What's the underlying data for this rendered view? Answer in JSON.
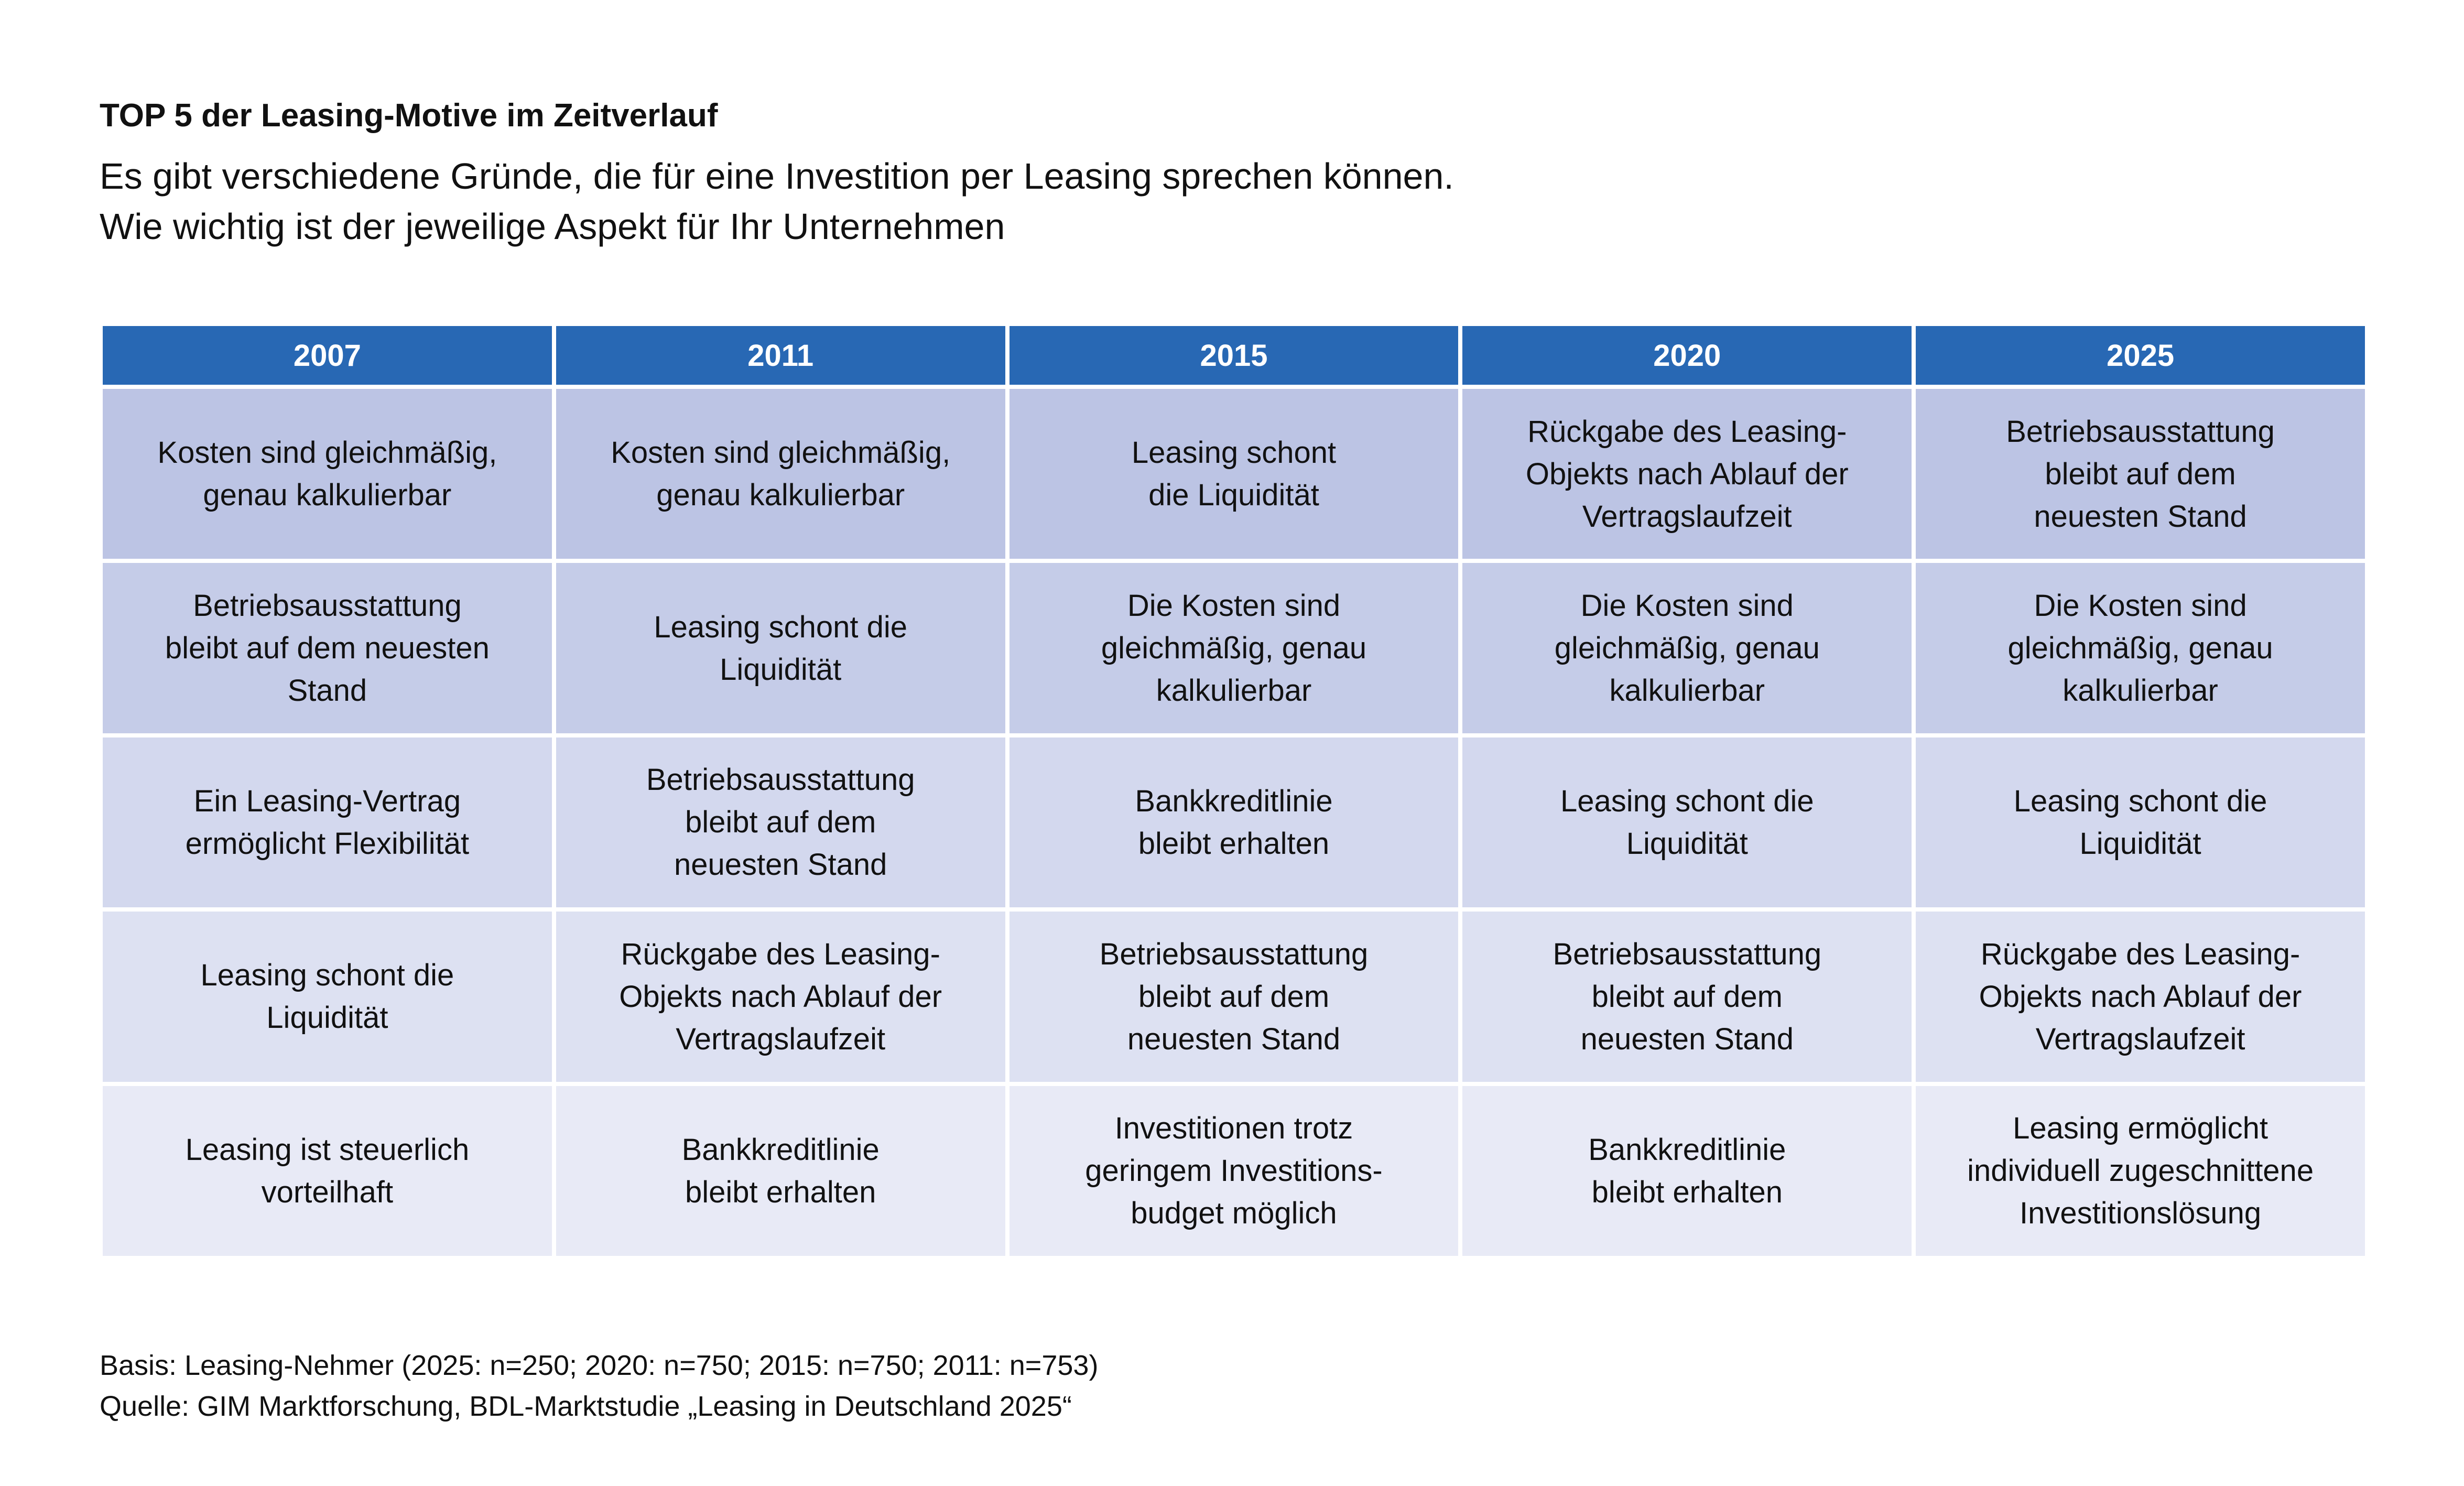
{
  "title": "TOP 5 der Leasing-Motive im Zeitverlauf",
  "subtitle": [
    "Es gibt verschiedene Gründe, die für eine Investition per Leasing sprechen können.",
    "Wie wichtig ist der jeweilige Aspekt für Ihr Unternehmen"
  ],
  "colors": {
    "header": "#2868b4",
    "rows": [
      "#bcc4e4",
      "#c5cce8",
      "#d3d8ee",
      "#dde1f2",
      "#e8eaf6"
    ]
  },
  "chart_data": {
    "type": "table",
    "columns": [
      "2007",
      "2011",
      "2015",
      "2020",
      "2025"
    ],
    "rows": [
      [
        "Kosten sind gleichmäßig,\ngenau kalkulierbar",
        "Kosten sind gleichmäßig,\ngenau kalkulierbar",
        "Leasing schont\ndie Liquidität",
        "Rückgabe des Leasing-\nObjekts nach Ablauf der\nVertragslaufzeit",
        "Betriebsausstattung\nbleibt auf dem\nneuesten Stand"
      ],
      [
        "Betriebsausstattung\nbleibt auf dem neuesten\nStand",
        "Leasing schont die\nLiquidität",
        "Die Kosten sind\ngleichmäßig, genau\nkalkulierbar",
        "Die Kosten sind\ngleichmäßig, genau\nkalkulierbar",
        "Die Kosten sind\ngleichmäßig, genau\nkalkulierbar"
      ],
      [
        "Ein Leasing-Vertrag\nermöglicht Flexibilität",
        "Betriebsausstattung\nbleibt auf dem\nneuesten Stand",
        "Bankkreditlinie\nbleibt erhalten",
        "Leasing schont die\nLiquidität",
        "Leasing schont die\nLiquidität"
      ],
      [
        "Leasing schont die\nLiquidität",
        "Rückgabe des Leasing-\nObjekts nach Ablauf der\nVertragslaufzeit",
        "Betriebsausstattung\nbleibt auf dem\nneuesten Stand",
        "Betriebsausstattung\nbleibt auf dem\nneuesten Stand",
        "Rückgabe des Leasing-\nObjekts nach Ablauf der\nVertragslaufzeit"
      ],
      [
        "Leasing ist steuerlich\nvorteilhaft",
        "Bankkreditlinie\nbleibt erhalten",
        "Investitionen trotz\ngeringem Investitions-\nbudget möglich",
        "Bankkreditlinie\nbleibt erhalten",
        "Leasing ermöglicht\nindividuell zugeschnittene\nInvestitionslösung"
      ]
    ]
  },
  "footer": {
    "basis": "Basis: Leasing-Nehmer (2025: n=250; 2020: n=750; 2015: n=750; 2011: n=753)",
    "source": "Quelle: GIM Marktforschung, BDL-Marktstudie „Leasing in Deutschland 2025“"
  }
}
